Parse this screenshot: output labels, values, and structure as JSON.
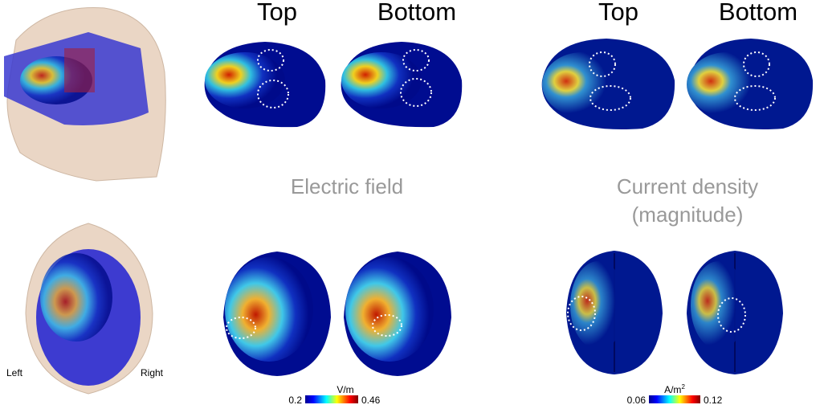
{
  "headers": {
    "electric_field": [
      "Top",
      "Bottom"
    ],
    "current_density": [
      "Top",
      "Bottom"
    ]
  },
  "labels": {
    "electric_field": "Electric field",
    "current_density": [
      "Current density",
      "(magnitude)"
    ]
  },
  "orientation": {
    "left": "Left",
    "right": "Right"
  },
  "colorbars": [
    {
      "unit": "V/m",
      "min": 0.2,
      "max": 0.46
    },
    {
      "unit": "A/m",
      "unit_exponent": "2",
      "min": 0.06,
      "max": 0.12
    }
  ]
}
